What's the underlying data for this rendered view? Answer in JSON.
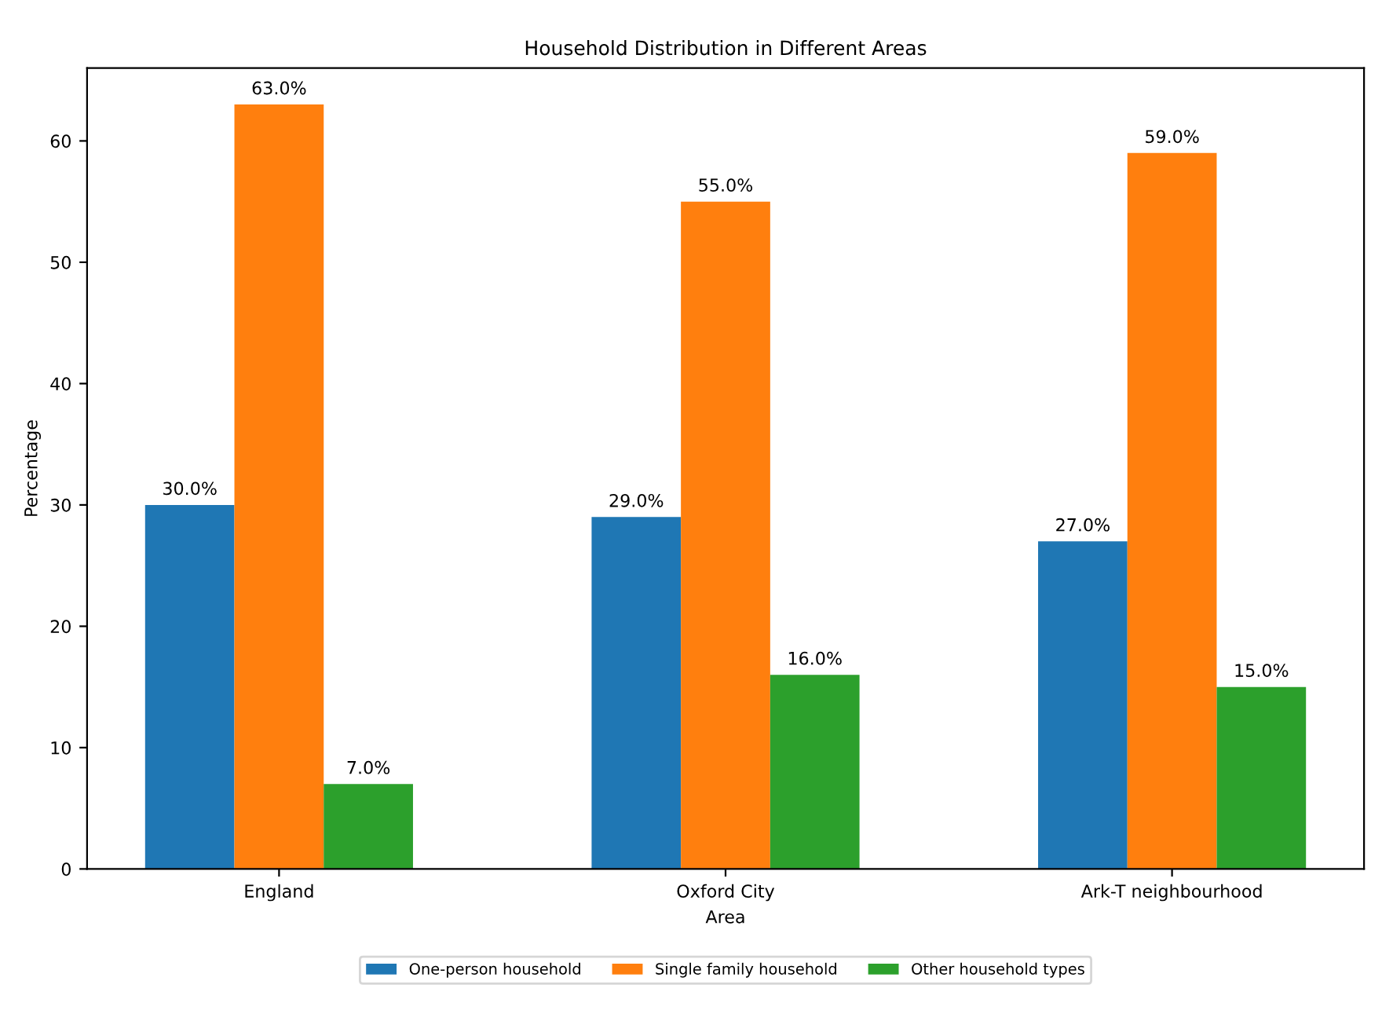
{
  "chart_data": {
    "type": "bar",
    "title": "Household Distribution in Different Areas",
    "xlabel": "Area",
    "ylabel": "Percentage",
    "categories": [
      "England",
      "Oxford City",
      "Ark-T neighbourhood"
    ],
    "series": [
      {
        "name": "One-person household",
        "color": "#1f77b4",
        "values": [
          30,
          29,
          27
        ],
        "value_labels": [
          "30.0%",
          "29.0%",
          "27.0%"
        ]
      },
      {
        "name": "Single family household",
        "color": "#ff7f0e",
        "values": [
          63,
          55,
          59
        ],
        "value_labels": [
          "63.0%",
          "55.0%",
          "59.0%"
        ]
      },
      {
        "name": "Other household types",
        "color": "#2ca02c",
        "values": [
          7,
          16,
          15
        ],
        "value_labels": [
          "7.0%",
          "16.0%",
          "15.0%"
        ]
      }
    ],
    "ylim": [
      0,
      66
    ],
    "yticks": [
      0,
      10,
      20,
      30,
      40,
      50,
      60
    ],
    "grid": false,
    "legend": "bottom"
  }
}
